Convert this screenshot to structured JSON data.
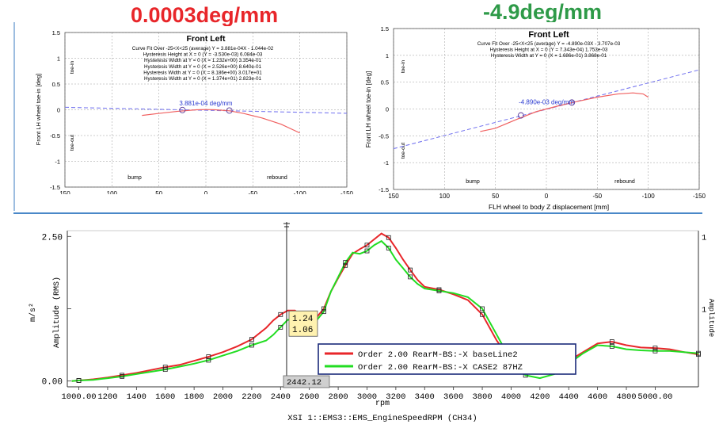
{
  "headline_left": "0.0003deg/mm",
  "headline_right": "-4.9deg/mm",
  "colors": {
    "headline_left": "#e8262a",
    "headline_right": "#2e9a48",
    "series_red": "#e8262a",
    "series_green": "#22dd22",
    "fit_line": "#7a7af0",
    "divider": "#4a88c8"
  },
  "chart_data": [
    {
      "type": "line",
      "title": "Front Left",
      "info_lines": [
        "Curve Fit Over -25<X<25 (average)   Y = 3.881e-04X - 1.044e-02",
        "Hysteresis Height at X = 0 (Y = -3.530e-03)   6.084e-03",
        "Hysteresis Width at Y = 0 (X = 1.232e+00)   3.354e-01",
        "Hysteresis Width at Y = 0 (X = 2.526e+00)   8.640e-01",
        "Hysteresis Width at Y = 0 (X = 8.186e+00)   3.017e+01",
        "Hysteresis Width at Y = 0 (X = 1.374e+01)   2.823e-01"
      ],
      "ylabel": "Front LH wheel toe-in [deg]",
      "xlim": [
        150,
        -150
      ],
      "ylim": [
        -1.5,
        1.5
      ],
      "xticks": [
        150,
        100,
        50,
        0,
        -50,
        -100,
        -150
      ],
      "yticks": [
        1.5,
        1,
        0.5,
        0,
        -0.5,
        -1,
        -1.5
      ],
      "grid": true,
      "annotations": {
        "toe_in": "toe-in",
        "toe_out": "toe-out",
        "bump": "bump",
        "rebound": "rebound",
        "slope": "3.881e-04 deg/mm"
      },
      "fit_line": {
        "x": [
          150,
          -150
        ],
        "y": [
          0.048,
          -0.068
        ]
      },
      "series": [
        {
          "x": [
            68,
            50,
            30,
            10,
            0,
            -10,
            -25,
            -40,
            -60,
            -80,
            -100
          ],
          "y": [
            -0.11,
            -0.07,
            -0.03,
            0.0,
            0.005,
            0.0,
            -0.02,
            -0.07,
            -0.16,
            -0.28,
            -0.45
          ]
        }
      ],
      "markers": {
        "x": [
          25,
          -25
        ],
        "y": [
          -0.005,
          -0.015
        ]
      }
    },
    {
      "type": "line",
      "title": "Front Left",
      "info_lines": [
        "Curve Fit Over -25<X<25 (average)   Y = -4.890e-03X - 3.707e-03",
        "Hysteresis Height at X = 0 (Y = 7.343e-04)   1.753e-03",
        "Hysteresis Width at Y = 0 (X = 1.686e-01)   3.868e-01"
      ],
      "xlabel": "FLH wheel to body Z displacement [mm]",
      "ylabel": "Front LH wheel toe-in [deg]",
      "xlim": [
        150,
        -150
      ],
      "ylim": [
        -1.5,
        1.5
      ],
      "xticks": [
        150,
        100,
        50,
        0,
        -50,
        -100,
        -150
      ],
      "yticks": [
        1.5,
        1,
        0.5,
        0,
        -0.5,
        -1,
        -1.5
      ],
      "grid": true,
      "annotations": {
        "toe_in": "toe-in",
        "toe_out": "toe-out",
        "bump": "bump",
        "rebound": "rebound",
        "slope": "-4.890e-03 deg/mm"
      },
      "fit_line": {
        "x": [
          150,
          -150
        ],
        "y": [
          -0.74,
          0.73
        ]
      },
      "series": [
        {
          "x": [
            65,
            50,
            30,
            10,
            0,
            -10,
            -30,
            -50,
            -70,
            -85,
            -95,
            -100
          ],
          "y": [
            -0.42,
            -0.36,
            -0.2,
            -0.05,
            0.0,
            0.05,
            0.14,
            0.22,
            0.28,
            0.3,
            0.28,
            0.22
          ]
        }
      ],
      "markers": {
        "x": [
          25,
          -25
        ],
        "y": [
          -0.12,
          0.12
        ]
      }
    },
    {
      "type": "line",
      "xlabel": "rpm",
      "ylabel": "Amplitude (RMS)",
      "yunit": "m/s²",
      "right_axis_label": "Amplitude",
      "footer": "XSI 1::EMS3::EMS_EngineSpeedRPM (CH34)",
      "xlim": [
        920,
        5300
      ],
      "ylim": [
        -0.1,
        2.6
      ],
      "xtick_labels": [
        "1000.00",
        "1200",
        "1400",
        "1600",
        "1800",
        "2000",
        "2200",
        "2400",
        "2600",
        "2800",
        "3000",
        "3200",
        "3400",
        "3600",
        "3800",
        "4000",
        "4200",
        "4400",
        "4600",
        "4800",
        "5000.00"
      ],
      "ytick_labels": [
        "2.50",
        "0.00"
      ],
      "right_tick_labels": [
        "1",
        "1"
      ],
      "grid": false,
      "legend_position": "bottom-right",
      "cursor": {
        "x_label": "2442.12",
        "values": [
          "1.24",
          "1.06"
        ]
      },
      "x": [
        950,
        1000,
        1100,
        1200,
        1300,
        1400,
        1500,
        1600,
        1700,
        1800,
        1900,
        2000,
        2100,
        2200,
        2300,
        2350,
        2400,
        2450,
        2500,
        2550,
        2600,
        2650,
        2700,
        2750,
        2800,
        2850,
        2900,
        2950,
        3000,
        3050,
        3100,
        3150,
        3200,
        3250,
        3300,
        3350,
        3400,
        3500,
        3600,
        3700,
        3800,
        3900,
        4000,
        4100,
        4200,
        4300,
        4400,
        4500,
        4600,
        4700,
        4800,
        4900,
        5000,
        5100,
        5200,
        5300
      ],
      "series": [
        {
          "name": "Order 2.00 RearM-BS:-X baseLine2",
          "values": [
            0.0,
            0.01,
            0.03,
            0.06,
            0.1,
            0.14,
            0.19,
            0.24,
            0.28,
            0.35,
            0.42,
            0.5,
            0.6,
            0.72,
            0.92,
            1.05,
            1.15,
            1.22,
            1.22,
            1.12,
            1.04,
            1.1,
            1.25,
            1.55,
            1.78,
            2.0,
            2.2,
            2.28,
            2.35,
            2.45,
            2.55,
            2.48,
            2.3,
            2.1,
            1.92,
            1.75,
            1.63,
            1.58,
            1.5,
            1.4,
            1.15,
            0.7,
            0.35,
            0.2,
            0.22,
            0.25,
            0.35,
            0.5,
            0.65,
            0.68,
            0.62,
            0.58,
            0.57,
            0.55,
            0.5,
            0.46
          ]
        },
        {
          "name": "Order 2.00 RearM-BS:-X CASE2 87HZ",
          "values": [
            0.0,
            0.01,
            0.02,
            0.05,
            0.08,
            0.12,
            0.16,
            0.2,
            0.25,
            0.3,
            0.36,
            0.44,
            0.52,
            0.62,
            0.7,
            0.8,
            0.93,
            1.06,
            1.05,
            0.98,
            0.95,
            1.05,
            1.2,
            1.55,
            1.8,
            2.05,
            2.22,
            2.2,
            2.25,
            2.35,
            2.42,
            2.3,
            2.1,
            1.95,
            1.8,
            1.68,
            1.6,
            1.56,
            1.52,
            1.45,
            1.25,
            0.8,
            0.35,
            0.1,
            0.05,
            0.12,
            0.3,
            0.48,
            0.62,
            0.6,
            0.55,
            0.53,
            0.52,
            0.52,
            0.5,
            0.48
          ]
        }
      ]
    }
  ]
}
